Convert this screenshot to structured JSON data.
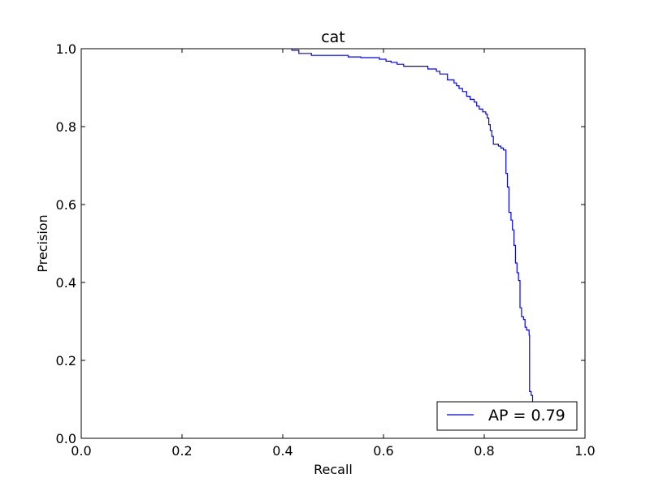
{
  "chart_data": {
    "type": "line",
    "title": "cat",
    "xlabel": "Recall",
    "ylabel": "Precision",
    "xlim": [
      0.0,
      1.0
    ],
    "ylim": [
      0.0,
      1.0
    ],
    "xticks": [
      "0.0",
      "0.2",
      "0.4",
      "0.6",
      "0.8",
      "1.0"
    ],
    "yticks": [
      "0.0",
      "0.2",
      "0.4",
      "0.6",
      "0.8",
      "1.0"
    ],
    "xtick_values": [
      0.0,
      0.2,
      0.4,
      0.6,
      0.8,
      1.0
    ],
    "ytick_values": [
      0.0,
      0.2,
      0.4,
      0.6,
      0.8,
      1.0
    ],
    "grid": false,
    "legend_position": "lower-right",
    "series": [
      {
        "name": "AP = 0.79",
        "color": "#0000ff",
        "points": [
          [
            0.418,
            1.0
          ],
          [
            0.418,
            0.996
          ],
          [
            0.432,
            0.996
          ],
          [
            0.432,
            0.988
          ],
          [
            0.457,
            0.988
          ],
          [
            0.457,
            0.983
          ],
          [
            0.53,
            0.983
          ],
          [
            0.53,
            0.979
          ],
          [
            0.555,
            0.979
          ],
          [
            0.555,
            0.977
          ],
          [
            0.592,
            0.977
          ],
          [
            0.592,
            0.973
          ],
          [
            0.605,
            0.973
          ],
          [
            0.605,
            0.968
          ],
          [
            0.615,
            0.968
          ],
          [
            0.615,
            0.965
          ],
          [
            0.627,
            0.965
          ],
          [
            0.627,
            0.96
          ],
          [
            0.64,
            0.96
          ],
          [
            0.64,
            0.955
          ],
          [
            0.688,
            0.955
          ],
          [
            0.688,
            0.948
          ],
          [
            0.705,
            0.948
          ],
          [
            0.705,
            0.942
          ],
          [
            0.712,
            0.942
          ],
          [
            0.712,
            0.935
          ],
          [
            0.727,
            0.935
          ],
          [
            0.727,
            0.92
          ],
          [
            0.74,
            0.92
          ],
          [
            0.74,
            0.912
          ],
          [
            0.745,
            0.912
          ],
          [
            0.745,
            0.905
          ],
          [
            0.75,
            0.905
          ],
          [
            0.75,
            0.898
          ],
          [
            0.757,
            0.898
          ],
          [
            0.757,
            0.89
          ],
          [
            0.765,
            0.89
          ],
          [
            0.765,
            0.878
          ],
          [
            0.772,
            0.878
          ],
          [
            0.772,
            0.87
          ],
          [
            0.78,
            0.87
          ],
          [
            0.78,
            0.863
          ],
          [
            0.785,
            0.863
          ],
          [
            0.785,
            0.853
          ],
          [
            0.79,
            0.853
          ],
          [
            0.79,
            0.845
          ],
          [
            0.797,
            0.845
          ],
          [
            0.797,
            0.838
          ],
          [
            0.803,
            0.838
          ],
          [
            0.803,
            0.832
          ],
          [
            0.806,
            0.832
          ],
          [
            0.806,
            0.822
          ],
          [
            0.809,
            0.822
          ],
          [
            0.809,
            0.805
          ],
          [
            0.812,
            0.805
          ],
          [
            0.812,
            0.79
          ],
          [
            0.815,
            0.79
          ],
          [
            0.815,
            0.775
          ],
          [
            0.818,
            0.775
          ],
          [
            0.818,
            0.755
          ],
          [
            0.828,
            0.755
          ],
          [
            0.828,
            0.75
          ],
          [
            0.833,
            0.75
          ],
          [
            0.833,
            0.745
          ],
          [
            0.838,
            0.745
          ],
          [
            0.838,
            0.74
          ],
          [
            0.843,
            0.74
          ],
          [
            0.843,
            0.68
          ],
          [
            0.846,
            0.68
          ],
          [
            0.846,
            0.645
          ],
          [
            0.849,
            0.645
          ],
          [
            0.849,
            0.58
          ],
          [
            0.853,
            0.58
          ],
          [
            0.853,
            0.56
          ],
          [
            0.856,
            0.56
          ],
          [
            0.856,
            0.535
          ],
          [
            0.859,
            0.535
          ],
          [
            0.859,
            0.495
          ],
          [
            0.862,
            0.495
          ],
          [
            0.862,
            0.45
          ],
          [
            0.865,
            0.45
          ],
          [
            0.865,
            0.425
          ],
          [
            0.868,
            0.425
          ],
          [
            0.868,
            0.405
          ],
          [
            0.871,
            0.405
          ],
          [
            0.871,
            0.335
          ],
          [
            0.874,
            0.335
          ],
          [
            0.874,
            0.312
          ],
          [
            0.878,
            0.312
          ],
          [
            0.878,
            0.305
          ],
          [
            0.881,
            0.305
          ],
          [
            0.881,
            0.285
          ],
          [
            0.884,
            0.285
          ],
          [
            0.884,
            0.278
          ],
          [
            0.889,
            0.278
          ],
          [
            0.889,
            0.265
          ],
          [
            0.89,
            0.265
          ],
          [
            0.89,
            0.12
          ],
          [
            0.893,
            0.12
          ],
          [
            0.893,
            0.11
          ],
          [
            0.896,
            0.11
          ],
          [
            0.896,
            0.09
          ]
        ]
      }
    ]
  }
}
